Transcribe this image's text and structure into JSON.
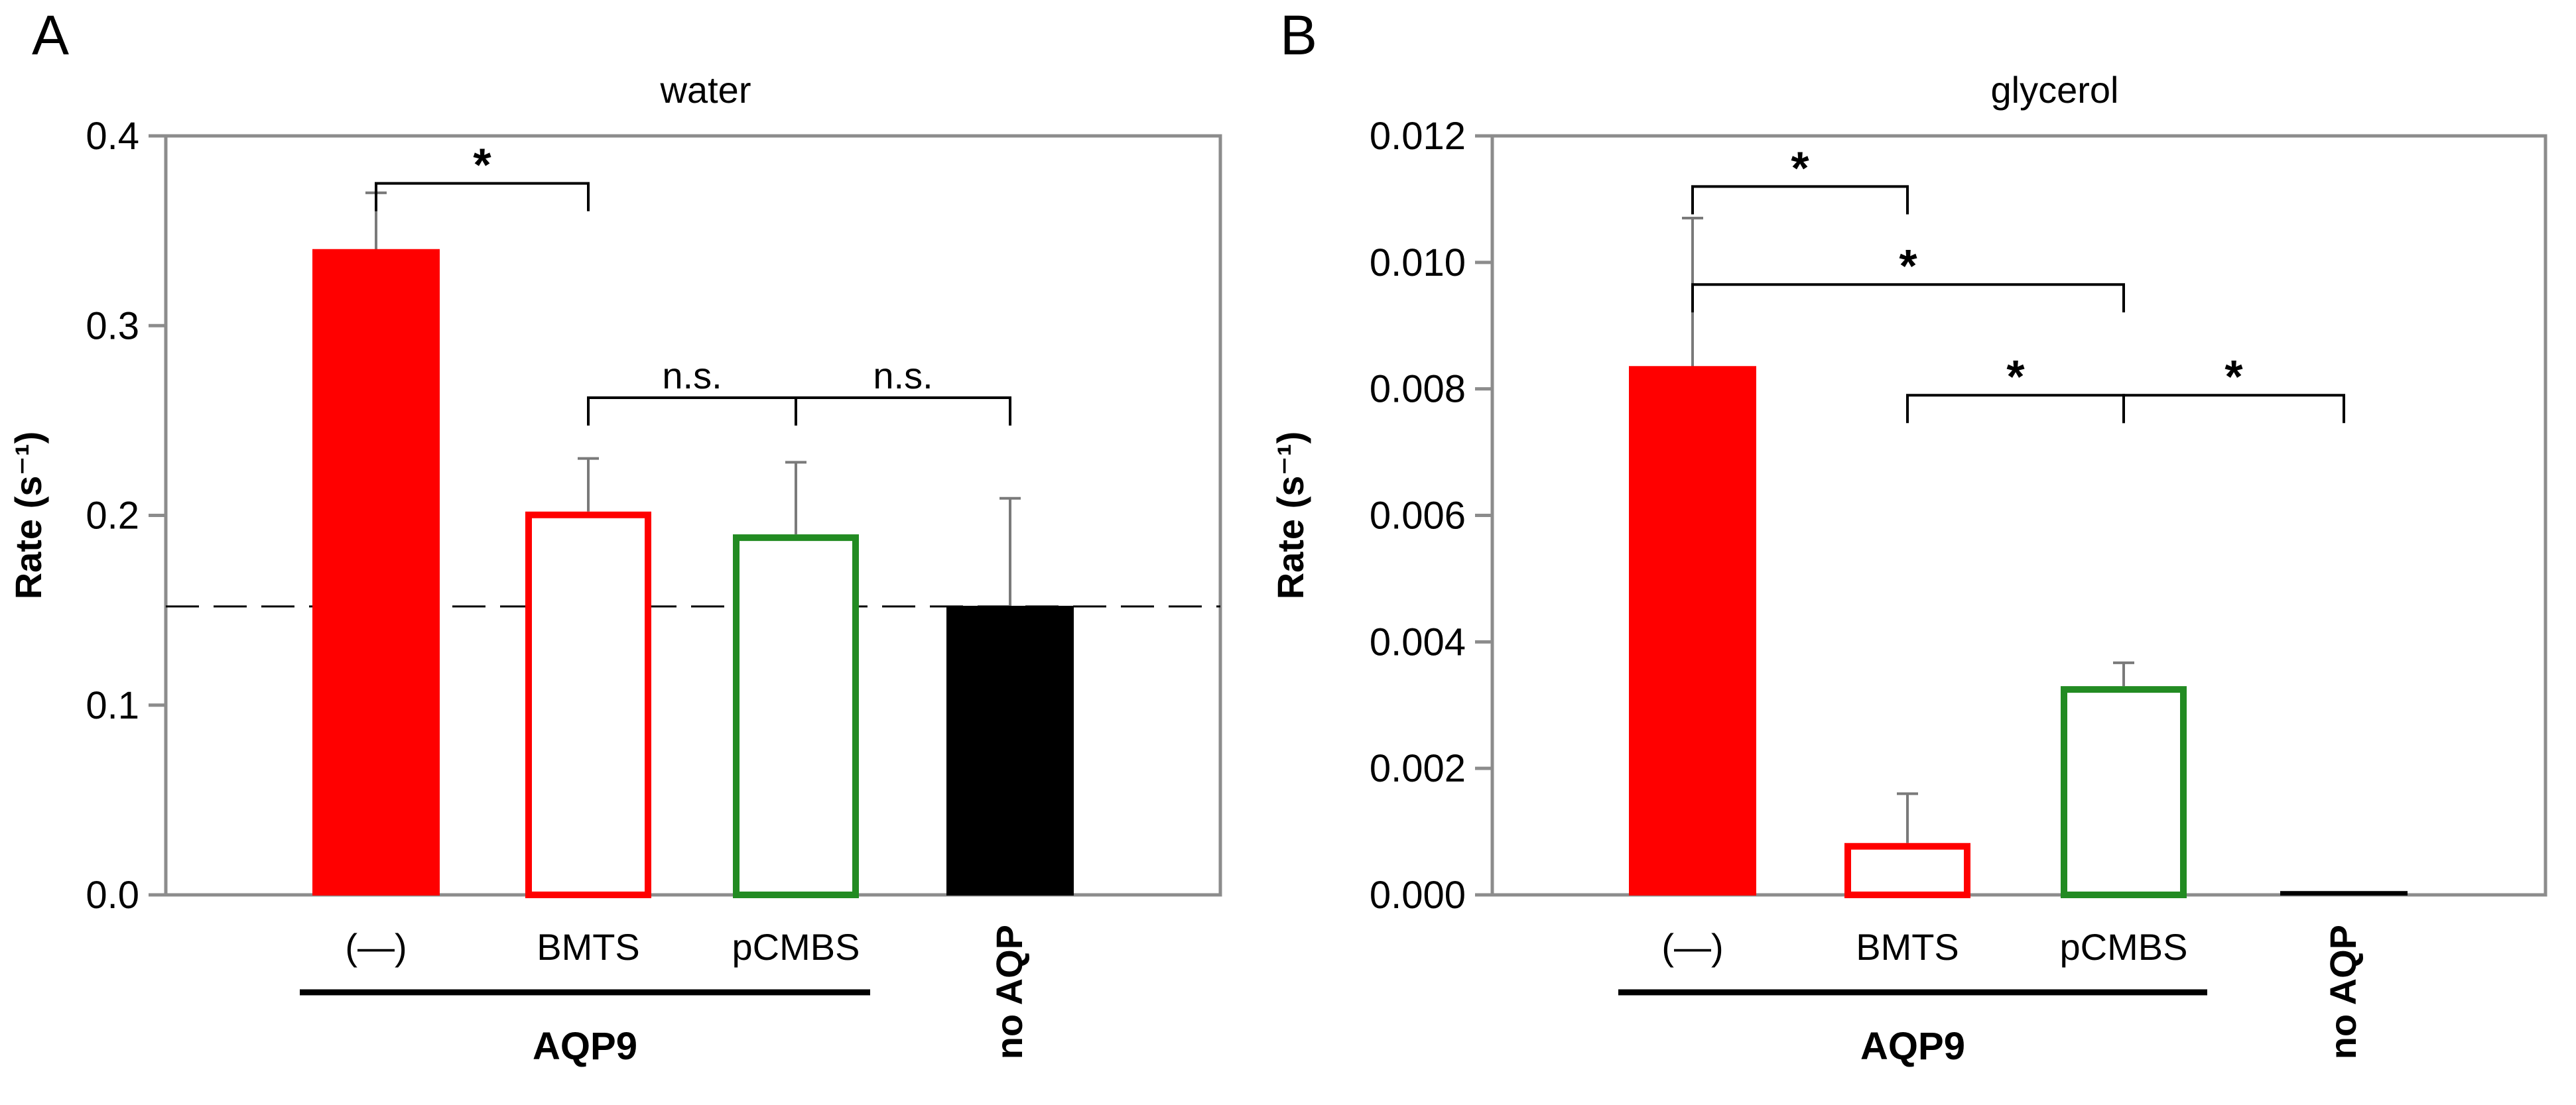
{
  "chart_data": [
    {
      "panel": "A",
      "type": "bar",
      "title": "water",
      "xlabel": "",
      "ylabel": "Rate (s⁻¹)",
      "ylim": [
        0,
        0.4
      ],
      "yticks": [
        "0.0",
        "0.1",
        "0.2",
        "0.3",
        "0.4"
      ],
      "ytick_values": [
        0,
        0.1,
        0.2,
        0.3,
        0.4
      ],
      "categories": [
        "(—)",
        "BMTS",
        "pCMBS",
        "no AQP"
      ],
      "values": [
        0.34,
        0.202,
        0.19,
        0.152
      ],
      "errors": [
        0.03,
        0.028,
        0.038,
        0.057
      ],
      "bar_styles": [
        {
          "fill": "#ff0000",
          "stroke": "#ff0000"
        },
        {
          "fill": "#ffffff",
          "stroke": "#ff0000"
        },
        {
          "fill": "#ffffff",
          "stroke": "#228b22"
        },
        {
          "fill": "#000000",
          "stroke": "#000000"
        }
      ],
      "reference_line": 0.152,
      "group": {
        "label": "AQP9",
        "categories": [
          "(—)",
          "BMTS",
          "pCMBS"
        ]
      },
      "significance": [
        {
          "from": 0,
          "to": 1,
          "label": "*",
          "y": 0.375
        },
        {
          "from": 1,
          "to": 2,
          "label": "n.s.",
          "y": 0.262
        },
        {
          "from": 2,
          "to": 3,
          "label": "n.s.",
          "y": 0.262
        }
      ]
    },
    {
      "panel": "B",
      "type": "bar",
      "title": "glycerol",
      "xlabel": "",
      "ylabel": "Rate (s⁻¹)",
      "ylim": [
        0,
        0.012
      ],
      "yticks": [
        "0.000",
        "0.002",
        "0.004",
        "0.006",
        "0.008",
        "0.010",
        "0.012"
      ],
      "ytick_values": [
        0,
        0.002,
        0.004,
        0.006,
        0.008,
        0.01,
        0.012
      ],
      "categories": [
        "(—)",
        "BMTS",
        "pCMBS",
        "no AQP"
      ],
      "values": [
        0.00835,
        0.00082,
        0.0033,
        5e-05
      ],
      "errors": [
        0.00235,
        0.00078,
        0.00037,
        0.0
      ],
      "bar_styles": [
        {
          "fill": "#ff0000",
          "stroke": "#ff0000"
        },
        {
          "fill": "#ffffff",
          "stroke": "#ff0000"
        },
        {
          "fill": "#ffffff",
          "stroke": "#228b22"
        },
        {
          "fill": "#000000",
          "stroke": "#000000"
        }
      ],
      "group": {
        "label": "AQP9",
        "categories": [
          "(—)",
          "BMTS",
          "pCMBS"
        ]
      },
      "significance": [
        {
          "from": 0,
          "to": 1,
          "label": "*",
          "y": 0.0112
        },
        {
          "from": 0,
          "to": 2,
          "label": "*",
          "y": 0.00965
        },
        {
          "from": 1,
          "to": 2,
          "label": "*",
          "y": 0.0079
        },
        {
          "from": 2,
          "to": 3,
          "label": "*",
          "y": 0.0079
        }
      ]
    }
  ]
}
